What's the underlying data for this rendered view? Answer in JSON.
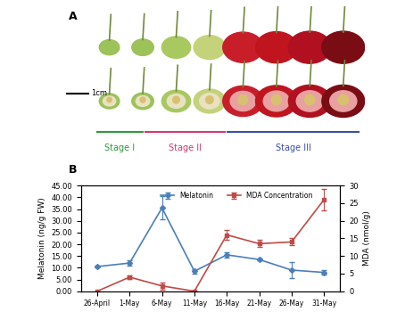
{
  "panel_a": {
    "label": "A",
    "scale_bar": "1cm",
    "stages": [
      {
        "label": "Stage I",
        "color": "#2e9a3a"
      },
      {
        "label": "Stage II",
        "color": "#d43a6a"
      },
      {
        "label": "Stage III",
        "color": "#3a4fa8"
      }
    ]
  },
  "chart_data": {
    "type": "line",
    "panel_label": "B",
    "categories": [
      "26-April",
      "1-May",
      "6-May",
      "11-May",
      "16-May",
      "21-May",
      "26-May",
      "31-May"
    ],
    "series": [
      {
        "name": "Melatonin",
        "color": "#4a7ebb",
        "marker": "diamond",
        "values": [
          10.5,
          12,
          35.5,
          8.5,
          15.5,
          13.5,
          9,
          8
        ],
        "errors": [
          0.5,
          1,
          5,
          1,
          1,
          0.5,
          3.5,
          1
        ]
      },
      {
        "name": "MDA Concentration",
        "color": "#be4b48",
        "marker": "square",
        "axis": "y2",
        "values": [
          0,
          4,
          1.5,
          0,
          16,
          13.5,
          14,
          26
        ],
        "errors": [
          0,
          0.5,
          1,
          0,
          1.5,
          1,
          1,
          3
        ]
      }
    ],
    "y_label": "Melatonin (ng/g FW)",
    "y2_label": "MDA (nmol/g)",
    "ylim": [
      0,
      45
    ],
    "yticks": [
      {
        "value": 0,
        "label": "0.00"
      },
      {
        "value": 5,
        "label": "5.00"
      },
      {
        "value": 10,
        "label": "10.00"
      },
      {
        "value": 15,
        "label": "15.00"
      },
      {
        "value": 20,
        "label": "20.00"
      },
      {
        "value": 25,
        "label": "25.00"
      },
      {
        "value": 30,
        "label": "30.00"
      },
      {
        "value": 35,
        "label": "35.00"
      },
      {
        "value": 40,
        "label": "40.00"
      },
      {
        "value": 45,
        "label": "45.00"
      }
    ],
    "y2lim": [
      0,
      30
    ],
    "y2ticks": [
      0,
      5,
      10,
      15,
      20,
      25,
      30
    ],
    "legend": "upper center",
    "grid": false
  }
}
